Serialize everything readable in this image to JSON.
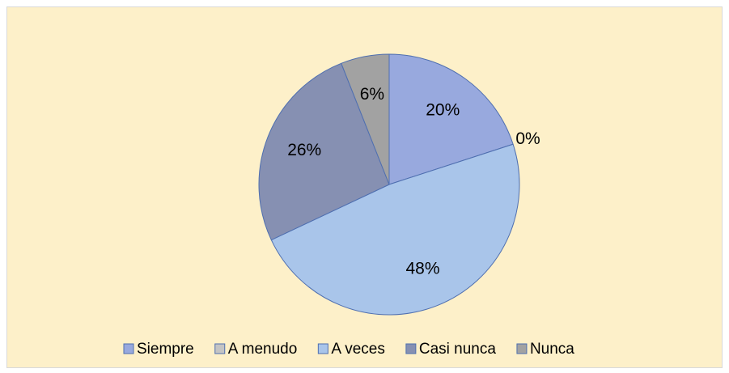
{
  "chart_data": {
    "type": "pie",
    "categories": [
      "Siempre",
      "A menudo",
      "A veces",
      "Casi nunca",
      "Nunca"
    ],
    "values": [
      20,
      0,
      48,
      26,
      6
    ],
    "value_labels": [
      "20%",
      "0%",
      "48%",
      "26%",
      "6%"
    ],
    "colors": [
      "#98a9de",
      "#c4c4c4",
      "#a9c5ea",
      "#8690b2",
      "#a2a2a2"
    ],
    "legend": "bottom"
  }
}
